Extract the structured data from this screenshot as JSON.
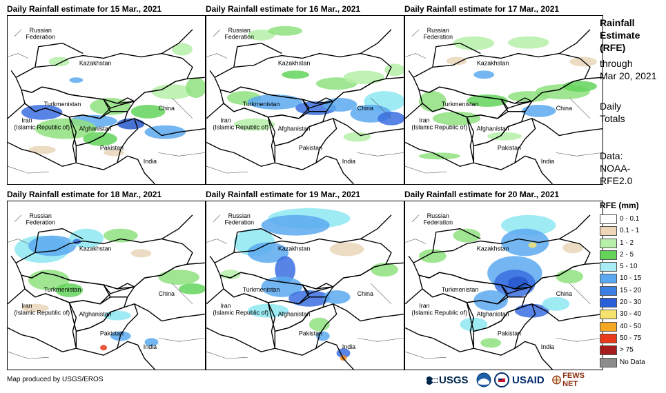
{
  "panels": [
    {
      "title": "Daily Rainfall estimate for 15 Mar., 2021",
      "pattern": "central-belt",
      "blobs": [
        [
          20,
          130,
          60,
          22,
          "#3b6fe0"
        ],
        [
          90,
          145,
          70,
          18,
          "#5aa9f0"
        ],
        [
          160,
          150,
          40,
          16,
          "#2858cc"
        ],
        [
          200,
          160,
          60,
          20,
          "#5aa9f0"
        ],
        [
          40,
          150,
          90,
          30,
          "#8fe07f"
        ],
        [
          120,
          120,
          60,
          25,
          "#8fe07f"
        ],
        [
          180,
          130,
          50,
          20,
          "#63d35a"
        ],
        [
          210,
          100,
          60,
          22,
          "#b6f0a8"
        ],
        [
          260,
          90,
          30,
          30,
          "#8fe07f"
        ],
        [
          60,
          60,
          30,
          14,
          "#b6f0a8"
        ],
        [
          240,
          40,
          30,
          18,
          "#b6f0a8"
        ],
        [
          110,
          170,
          50,
          20,
          "#63d35a"
        ],
        [
          140,
          195,
          30,
          10,
          "#e9d6b8"
        ],
        [
          30,
          190,
          40,
          12,
          "#e9d6b8"
        ],
        [
          90,
          90,
          20,
          8,
          "#5aa9f0"
        ]
      ]
    },
    {
      "title": "Daily Rainfall estimate for 16 Mar., 2021",
      "pattern": "central-belt",
      "blobs": [
        [
          60,
          20,
          40,
          16,
          "#b6f0a8"
        ],
        [
          90,
          15,
          50,
          14,
          "#8fe07f"
        ],
        [
          30,
          110,
          50,
          20,
          "#8fe07f"
        ],
        [
          60,
          115,
          80,
          22,
          "#5aa9f0"
        ],
        [
          130,
          125,
          60,
          20,
          "#3b6fe0"
        ],
        [
          170,
          120,
          50,
          20,
          "#5aa9f0"
        ],
        [
          230,
          110,
          60,
          30,
          "#8de7f2"
        ],
        [
          210,
          130,
          60,
          26,
          "#5aa9f0"
        ],
        [
          250,
          140,
          40,
          20,
          "#3b6fe0"
        ],
        [
          160,
          90,
          60,
          18,
          "#8fe07f"
        ],
        [
          200,
          80,
          60,
          20,
          "#b6f0a8"
        ],
        [
          110,
          80,
          40,
          12,
          "#63d35a"
        ],
        [
          40,
          150,
          60,
          18,
          "#b6f0a8"
        ],
        [
          200,
          170,
          40,
          14,
          "#b6f0a8"
        ],
        [
          260,
          70,
          30,
          18,
          "#b6f0a8"
        ]
      ]
    },
    {
      "title": "Daily Rainfall estimate for 17 Mar., 2021",
      "pattern": "central-belt",
      "blobs": [
        [
          70,
          30,
          60,
          20,
          "#b6f0a8"
        ],
        [
          150,
          30,
          60,
          18,
          "#b6f0a8"
        ],
        [
          20,
          110,
          40,
          30,
          "#8fe07f"
        ],
        [
          40,
          140,
          70,
          20,
          "#8fe07f"
        ],
        [
          90,
          115,
          60,
          18,
          "#63d35a"
        ],
        [
          150,
          110,
          60,
          16,
          "#8fe07f"
        ],
        [
          190,
          100,
          80,
          22,
          "#8fe07f"
        ],
        [
          230,
          95,
          50,
          16,
          "#63d35a"
        ],
        [
          170,
          130,
          50,
          18,
          "#5aa9f0"
        ],
        [
          100,
          80,
          30,
          12,
          "#5aa9f0"
        ],
        [
          20,
          200,
          60,
          10,
          "#8fe07f"
        ],
        [
          240,
          60,
          40,
          14,
          "#e9d6b8"
        ],
        [
          60,
          60,
          30,
          12,
          "#e9d6b8"
        ],
        [
          120,
          170,
          50,
          12,
          "#b6f0a8"
        ]
      ]
    },
    {
      "title": "Daily Rainfall estimate for 18 Mar., 2021",
      "pattern": "north-west",
      "blobs": [
        [
          10,
          50,
          80,
          40,
          "#8de7f2"
        ],
        [
          30,
          50,
          70,
          30,
          "#5aa9f0"
        ],
        [
          90,
          40,
          50,
          28,
          "#8de7f2"
        ],
        [
          95,
          55,
          12,
          8,
          "#3b6fe0"
        ],
        [
          140,
          40,
          50,
          20,
          "#8fe07f"
        ],
        [
          30,
          100,
          60,
          30,
          "#8fe07f"
        ],
        [
          70,
          120,
          40,
          20,
          "#63d35a"
        ],
        [
          220,
          100,
          60,
          22,
          "#8fe07f"
        ],
        [
          250,
          120,
          40,
          16,
          "#63d35a"
        ],
        [
          140,
          160,
          40,
          14,
          "#8de7f2"
        ],
        [
          150,
          190,
          30,
          14,
          "#5aa9f0"
        ],
        [
          200,
          200,
          20,
          12,
          "#5aa9f0"
        ],
        [
          135,
          210,
          10,
          8,
          "#e83a1a"
        ],
        [
          20,
          150,
          40,
          12,
          "#e9d6b8"
        ],
        [
          180,
          70,
          30,
          12,
          "#e9d6b8"
        ]
      ]
    },
    {
      "title": "Daily Rainfall estimate for 19 Mar., 2021",
      "pattern": "north",
      "blobs": [
        [
          90,
          10,
          120,
          30,
          "#8de7f2"
        ],
        [
          80,
          20,
          100,
          30,
          "#5aa9f0"
        ],
        [
          40,
          40,
          60,
          40,
          "#8de7f2"
        ],
        [
          60,
          60,
          60,
          30,
          "#5aa9f0"
        ],
        [
          100,
          80,
          30,
          40,
          "#3b6fe0"
        ],
        [
          80,
          110,
          60,
          30,
          "#5aa9f0"
        ],
        [
          120,
          130,
          60,
          24,
          "#3b6fe0"
        ],
        [
          170,
          130,
          40,
          20,
          "#5aa9f0"
        ],
        [
          60,
          150,
          60,
          20,
          "#8de7f2"
        ],
        [
          150,
          170,
          30,
          20,
          "#8fe07f"
        ],
        [
          160,
          190,
          20,
          14,
          "#5aa9f0"
        ],
        [
          190,
          215,
          20,
          14,
          "#3b6fe0"
        ],
        [
          195,
          225,
          10,
          8,
          "#f28a1b"
        ],
        [
          180,
          60,
          50,
          20,
          "#e9d6b8"
        ],
        [
          240,
          90,
          40,
          20,
          "#8fe07f"
        ],
        [
          20,
          100,
          30,
          14,
          "#b6f0a8"
        ]
      ]
    },
    {
      "title": "Daily Rainfall estimate for 20 Mar., 2021",
      "pattern": "east",
      "blobs": [
        [
          140,
          20,
          80,
          30,
          "#8de7f2"
        ],
        [
          140,
          40,
          70,
          40,
          "#5aa9f0"
        ],
        [
          120,
          80,
          80,
          50,
          "#5aa9f0"
        ],
        [
          130,
          100,
          60,
          40,
          "#3b6fe0"
        ],
        [
          150,
          110,
          30,
          20,
          "#2858cc"
        ],
        [
          180,
          60,
          12,
          8,
          "#f6e36e"
        ],
        [
          100,
          130,
          50,
          30,
          "#5aa9f0"
        ],
        [
          160,
          150,
          50,
          20,
          "#3b6fe0"
        ],
        [
          200,
          140,
          40,
          20,
          "#8de7f2"
        ],
        [
          70,
          40,
          40,
          20,
          "#8fe07f"
        ],
        [
          20,
          70,
          40,
          20,
          "#8fe07f"
        ],
        [
          220,
          100,
          40,
          20,
          "#8fe07f"
        ],
        [
          80,
          170,
          40,
          20,
          "#8de7f2"
        ],
        [
          110,
          200,
          30,
          14,
          "#8fe07f"
        ],
        [
          230,
          60,
          30,
          16,
          "#e9d6b8"
        ]
      ]
    }
  ],
  "map_labels": {
    "russia_1": "Russian",
    "russia_2": "Federation",
    "kazakhstan": "Kazakhstan",
    "turkmenistan": "Turkmenistan",
    "iran_1": "Iran",
    "iran_2": "(Islamic Republic of)",
    "afghanistan": "Afghanistan",
    "pakistan": "Pakistan",
    "china": "China",
    "india": "India"
  },
  "side": {
    "title_1": "Rainfall",
    "title_2": "Estimate",
    "title_3": "(RFE)",
    "through_1": "through",
    "through_2": "Mar 20, 2021",
    "totals_1": "Daily",
    "totals_2": "Totals",
    "data_1": "Data:",
    "data_2": "NOAA-",
    "data_3": "RFE2.0"
  },
  "legend": {
    "title": "RFE (mm)",
    "items": [
      {
        "label": "0 - 0.1",
        "color": "#ffffff"
      },
      {
        "label": "0.1 - 1",
        "color": "#eed7b9"
      },
      {
        "label": "1 - 2",
        "color": "#b6f0a8"
      },
      {
        "label": "2 - 5",
        "color": "#63d35a"
      },
      {
        "label": "5 - 10",
        "color": "#a9ecf5"
      },
      {
        "label": "10 - 15",
        "color": "#5aa9f0"
      },
      {
        "label": "15 - 20",
        "color": "#3c80e4"
      },
      {
        "label": "20 - 30",
        "color": "#2a5fd8"
      },
      {
        "label": "30 - 40",
        "color": "#f6e36e"
      },
      {
        "label": "40 - 50",
        "color": "#f5a623"
      },
      {
        "label": "50 - 75",
        "color": "#e83a1a"
      },
      {
        "label": "> 75",
        "color": "#a61c1c"
      },
      {
        "label": "No Data",
        "color": "#8c8c8c"
      }
    ]
  },
  "footer": "Map produced by USGS/EROS",
  "logos": {
    "usgs": "USGS",
    "usaid": "USAID",
    "fews": "FEWS NET"
  }
}
